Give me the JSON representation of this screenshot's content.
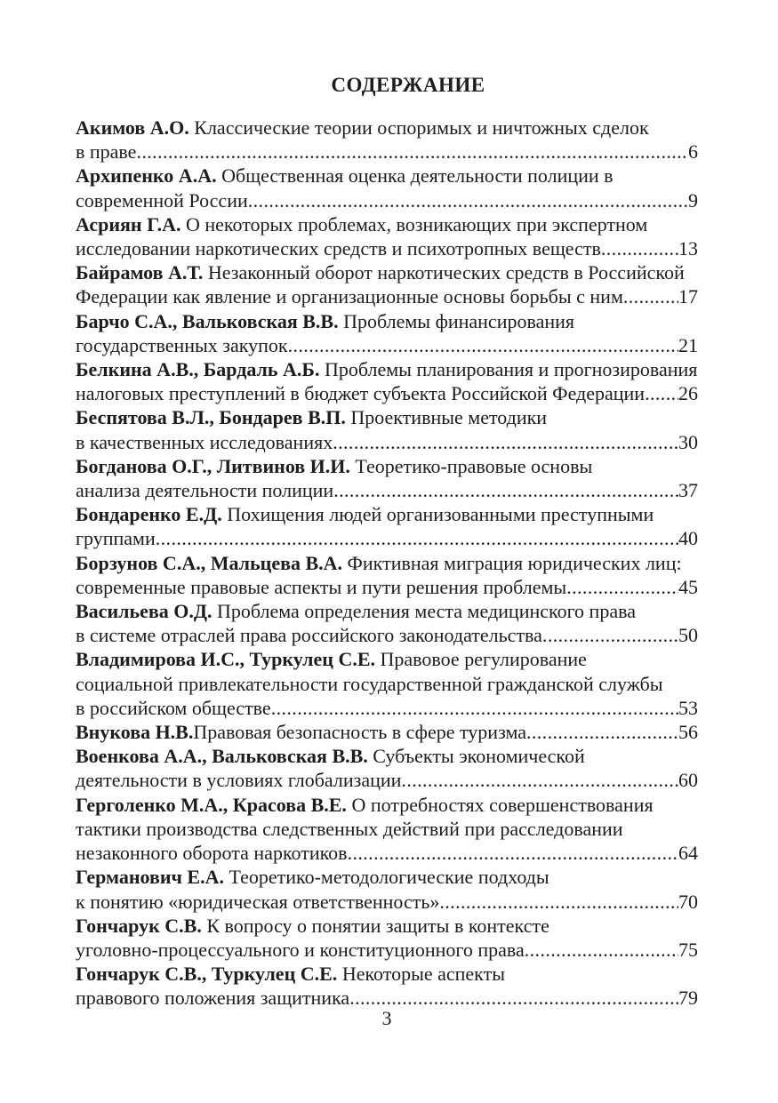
{
  "title": "СОДЕРЖАНИЕ",
  "colors": {
    "background": "#ffffff",
    "text": "#1d1d1b"
  },
  "footer": {
    "page_number": "3"
  },
  "entries": [
    {
      "lines": [
        {
          "bold": "Акимов А.О.",
          "text": "Классические теории оспоримых и ничтожных сделок"
        },
        {
          "text": "в праве"
        }
      ],
      "page": "6"
    },
    {
      "lines": [
        {
          "bold": "Архипенко А.А.",
          "text": "Общественная оценка деятельности полиции в"
        },
        {
          "text": "современной России"
        }
      ],
      "page": "9"
    },
    {
      "lines": [
        {
          "bold": "Асриян Г.А.",
          "text": "О некоторых проблемах, возникающих при экспертном"
        },
        {
          "text": "исследовании наркотических средств и психотропных веществ"
        }
      ],
      "page": "13"
    },
    {
      "lines": [
        {
          "bold": "Байрамов А.Т.",
          "text": "Незаконный оборот наркотических средств в Российской"
        },
        {
          "text": "Федерации как явление и организационные основы борьбы с ним"
        }
      ],
      "page": "17"
    },
    {
      "lines": [
        {
          "bold": "Барчо С.А., Вальковская В.В.",
          "text": "Проблемы финансирования"
        },
        {
          "text": "государственных закупок"
        }
      ],
      "page": "21"
    },
    {
      "lines": [
        {
          "bold": "Белкина А.В., Бардаль А.Б.",
          "text": "Проблемы планирования и прогнозирования"
        },
        {
          "text": "налоговых преступлений в бюджет субъекта Российской Федерации"
        }
      ],
      "page": "26"
    },
    {
      "lines": [
        {
          "bold": "Беспятова В.Л., Бондарев В.П.",
          "text": "Проективные методики"
        },
        {
          "text": "в качественных исследованиях"
        }
      ],
      "page": "30"
    },
    {
      "lines": [
        {
          "bold": "Богданова О.Г., Литвинов И.И.",
          "text": "Теоретико-правовые основы"
        },
        {
          "text": "анализа деятельности полиции"
        }
      ],
      "page": "37"
    },
    {
      "lines": [
        {
          "bold": "Бондаренко Е.Д.",
          "text": "Похищения людей организованными преступными"
        },
        {
          "text": "группами"
        }
      ],
      "page": "40"
    },
    {
      "lines": [
        {
          "bold": "Борзунов С.А., Мальцева В.А.",
          "text": "Фиктивная миграция юридических лиц:"
        },
        {
          "text": "современные правовые аспекты и пути решения проблемы"
        }
      ],
      "page": "45"
    },
    {
      "lines": [
        {
          "bold": "Васильева О.Д.",
          "text": "Проблема определения места медицинского права"
        },
        {
          "text": "в системе отраслей права российского законодательства"
        }
      ],
      "page": "50"
    },
    {
      "lines": [
        {
          "bold": "Владимирова И.С., Туркулец С.Е.",
          "text": "Правовое регулирование"
        },
        {
          "text": "социальной привлекательности государственной гражданской службы"
        },
        {
          "text": "в российском обществе"
        }
      ],
      "page": "53"
    },
    {
      "lines": [
        {
          "bold": "Внукова Н.В.",
          "text": "Правовая безопасность в сфере туризма"
        }
      ],
      "page": "56"
    },
    {
      "lines": [
        {
          "bold": "Военкова А.А., Вальковская В.В.",
          "text": "Субъекты экономической"
        },
        {
          "text": "деятельности в условиях глобализации"
        }
      ],
      "page": "60"
    },
    {
      "lines": [
        {
          "bold": "Герголенко М.А., Красова В.Е.",
          "text": "О потребностях совершенствования"
        },
        {
          "text": "тактики производства следственных действий при расследовании"
        },
        {
          "text": "незаконного оборота наркотиков"
        }
      ],
      "page": "64"
    },
    {
      "lines": [
        {
          "bold": "Германович Е.А.",
          "text": "Теоретико-методологические подходы"
        },
        {
          "text": "к понятию «юридическая ответственность»"
        }
      ],
      "page": "70"
    },
    {
      "lines": [
        {
          "bold": "Гончарук С.В.",
          "text": "К вопросу о понятии защиты в контексте"
        },
        {
          "text": "уголовно-процессуального и конституционного права"
        }
      ],
      "page": "75"
    },
    {
      "lines": [
        {
          "bold": "Гончарук С.В., Туркулец С.Е.",
          "text": "Некоторые аспекты"
        },
        {
          "text": "правового положения защитника"
        }
      ],
      "page": "79"
    }
  ]
}
